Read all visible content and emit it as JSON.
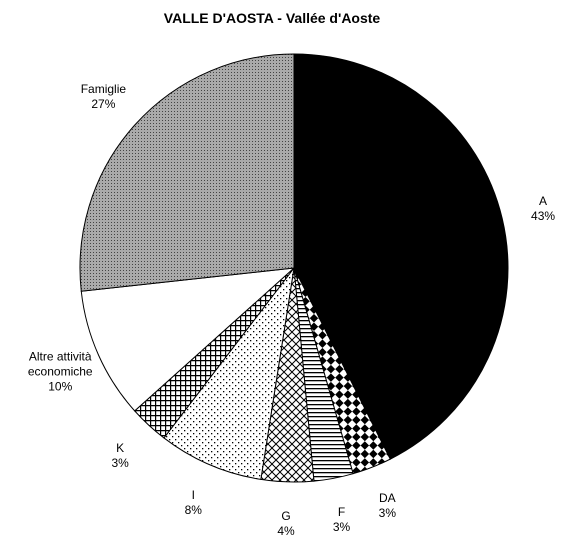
{
  "chart_data": {
    "type": "pie",
    "title": "VALLE D'AOSTA - Vallée d'Aoste",
    "categories": [
      "A",
      "DA",
      "F",
      "G",
      "I",
      "K",
      "Altre attività economiche",
      "Famiglie"
    ],
    "values": [
      43,
      3,
      3,
      4,
      8,
      3,
      10,
      27
    ],
    "value_labels": [
      "43%",
      "3%",
      "3%",
      "4%",
      "8%",
      "3%",
      "10%",
      "27%"
    ],
    "patterns": [
      "solid-black",
      "diamonds",
      "horizontal-stripes",
      "crosshatch",
      "sparse-dots",
      "grid",
      "solid-white",
      "gray-dots"
    ]
  }
}
